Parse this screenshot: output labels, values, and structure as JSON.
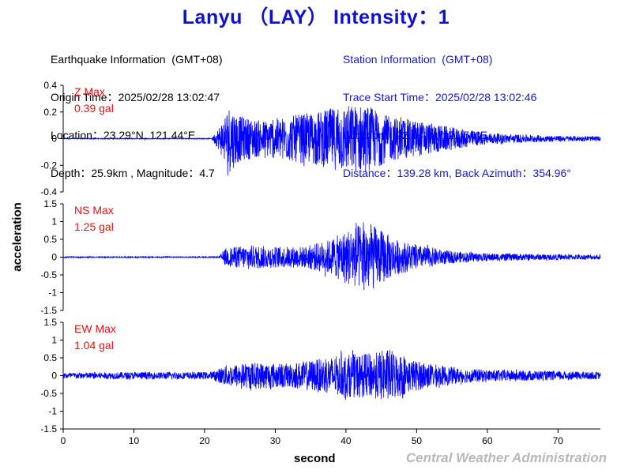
{
  "header": {
    "title": "Lanyu （LAY） Intensity：1"
  },
  "earthquake_info": [
    "Earthquake Information  (GMT+08)",
    "Origin Time：2025/02/28 13:02:47",
    "Location：23.29°N, 121.44°E",
    "Depth：25.9km , Magnitude：4.7"
  ],
  "station_info": [
    "Station Information  (GMT+08)",
    "Trace Start Time：2025/02/28 13:02:46",
    "Location：22.04°N, 121.56°E",
    "Distance：139.28 km, Back Azimuth：354.96°"
  ],
  "footer": {
    "credit": "Central Weather Administration"
  },
  "colors": {
    "title": "#1010d0",
    "trace": "#0000ff",
    "max_label": "#e81010",
    "station_text": "#1515d8",
    "credit": "#b8b8b8"
  },
  "chart_data": {
    "type": "line",
    "xlabel": "second",
    "ylabel": "acceleration",
    "xlim": [
      0,
      76
    ],
    "x_ticks": [
      0,
      10,
      20,
      30,
      40,
      50,
      60,
      70
    ],
    "grid": false,
    "panels": [
      {
        "component": "Z",
        "max_label": "Z Max",
        "max_value": "0.39 gal",
        "ylim": [
          -0.4,
          0.4
        ],
        "y_ticks": [
          0.4,
          0.2,
          0,
          -0.2,
          -0.4
        ],
        "y_tick_labels": [
          "0.4",
          "0.2",
          "0",
          "-0.2",
          "-0.4"
        ],
        "envelope": [
          [
            0,
            0.004
          ],
          [
            21,
            0.004
          ],
          [
            22,
            0.1
          ],
          [
            23.5,
            0.3
          ],
          [
            25,
            0.2
          ],
          [
            28,
            0.16
          ],
          [
            32,
            0.2
          ],
          [
            36,
            0.24
          ],
          [
            40,
            0.3
          ],
          [
            43,
            0.3
          ],
          [
            46,
            0.2
          ],
          [
            50,
            0.16
          ],
          [
            55,
            0.1
          ],
          [
            60,
            0.05
          ],
          [
            65,
            0.035
          ],
          [
            70,
            0.025
          ],
          [
            76,
            0.02
          ]
        ]
      },
      {
        "component": "NS",
        "max_label": "NS Max",
        "max_value": "1.25 gal",
        "ylim": [
          -1.5,
          1.5
        ],
        "y_ticks": [
          1.5,
          1,
          0.5,
          0,
          -0.5,
          -1,
          -1.5
        ],
        "y_tick_labels": [
          "1.5",
          "1",
          "0.5",
          "0",
          "-0.5",
          "-1",
          "-1.5"
        ],
        "envelope": [
          [
            0,
            0.02
          ],
          [
            22,
            0.02
          ],
          [
            23,
            0.3
          ],
          [
            26,
            0.4
          ],
          [
            30,
            0.35
          ],
          [
            34,
            0.35
          ],
          [
            38,
            0.6
          ],
          [
            40,
            0.9
          ],
          [
            43,
            1.2
          ],
          [
            45,
            0.9
          ],
          [
            47,
            0.6
          ],
          [
            50,
            0.4
          ],
          [
            55,
            0.2
          ],
          [
            60,
            0.13
          ],
          [
            70,
            0.09
          ],
          [
            76,
            0.08
          ]
        ]
      },
      {
        "component": "EW",
        "max_label": "EW Max",
        "max_value": "1.04 gal",
        "ylim": [
          -1.5,
          1.5
        ],
        "y_ticks": [
          1.5,
          1,
          0.5,
          0,
          -0.5,
          -1,
          -1.5
        ],
        "y_tick_labels": [
          "1.5",
          "1",
          "0.5",
          "0",
          "-0.5",
          "-1",
          "-1.5"
        ],
        "envelope": [
          [
            0,
            0.1
          ],
          [
            10,
            0.12
          ],
          [
            21,
            0.12
          ],
          [
            23,
            0.35
          ],
          [
            27,
            0.45
          ],
          [
            32,
            0.4
          ],
          [
            36,
            0.55
          ],
          [
            40,
            0.7
          ],
          [
            44,
            0.75
          ],
          [
            46,
            0.9
          ],
          [
            49,
            0.55
          ],
          [
            52,
            0.4
          ],
          [
            56,
            0.25
          ],
          [
            60,
            0.2
          ],
          [
            70,
            0.15
          ],
          [
            76,
            0.12
          ]
        ]
      }
    ]
  }
}
